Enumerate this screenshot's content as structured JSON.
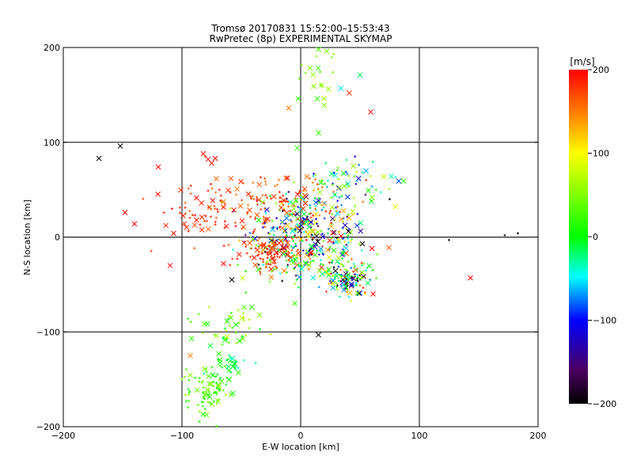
{
  "chart_data": {
    "type": "scatter",
    "title": "Tromsø 20170831 15:52:00–15:53:43",
    "subtitle": "RwPretec (8p) EXPERIMENTAL SKYMAP",
    "xlabel": "E-W location [km]",
    "ylabel": "N-S location [km]",
    "xlim": [
      -200,
      200
    ],
    "ylim": [
      -200,
      200
    ],
    "xticks": [
      "−200",
      "−100",
      "0",
      "100",
      "200"
    ],
    "yticks": [
      "−200",
      "−100",
      "0",
      "100",
      "200"
    ],
    "grid": true,
    "colorbar": {
      "label": "[m/s]",
      "min": -200,
      "max": 200,
      "ticks": [
        "200",
        "100",
        "0",
        "−100",
        "−200"
      ]
    },
    "markers": [
      "x",
      "+"
    ],
    "points": [
      {
        "x": -170,
        "y": 83,
        "v": -200,
        "m": "x"
      },
      {
        "x": -152,
        "y": 96,
        "v": -200,
        "m": "x"
      },
      {
        "x": -148,
        "y": 26,
        "v": 200,
        "m": "x"
      },
      {
        "x": -140,
        "y": 14,
        "v": 200,
        "m": "x"
      },
      {
        "x": -120,
        "y": 74,
        "v": 200,
        "m": "x"
      },
      {
        "x": -107,
        "y": 4,
        "v": 200,
        "m": "x"
      },
      {
        "x": -82,
        "y": 88,
        "v": 200,
        "m": "x"
      },
      {
        "x": -78,
        "y": 82,
        "v": 200,
        "m": "x"
      },
      {
        "x": -72,
        "y": 83,
        "v": 200,
        "m": "x"
      },
      {
        "x": -75,
        "y": 78,
        "v": 190,
        "m": "x"
      },
      {
        "x": 143,
        "y": -43,
        "v": 200,
        "m": "x"
      },
      {
        "x": 59,
        "y": 132,
        "v": 200,
        "m": "x"
      },
      {
        "x": 41,
        "y": 152,
        "v": 180,
        "m": "x"
      },
      {
        "x": 50,
        "y": 171,
        "v": -20,
        "m": "x"
      },
      {
        "x": 34,
        "y": 157,
        "v": -50,
        "m": "x"
      },
      {
        "x": 14,
        "y": 146,
        "v": 20,
        "m": "x"
      },
      {
        "x": 20,
        "y": 139,
        "v": 50,
        "m": "x"
      },
      {
        "x": -2,
        "y": 146,
        "v": 20,
        "m": "x"
      },
      {
        "x": -10,
        "y": 136,
        "v": 150,
        "m": "x"
      },
      {
        "x": 15,
        "y": 110,
        "v": 20,
        "m": "x"
      },
      {
        "x": -3,
        "y": 94,
        "v": 20,
        "m": "x"
      },
      {
        "x": 15,
        "y": 198,
        "v": 30,
        "m": "x"
      },
      {
        "x": 22,
        "y": 196,
        "v": 50,
        "m": "x"
      },
      {
        "x": 80,
        "y": 32,
        "v": 90,
        "m": "x"
      },
      {
        "x": 61,
        "y": -60,
        "v": 200,
        "m": "x"
      },
      {
        "x": 60,
        "y": -12,
        "v": 200,
        "m": "x"
      },
      {
        "x": 52,
        "y": -7,
        "v": -200,
        "m": "x"
      },
      {
        "x": 15,
        "y": -103,
        "v": -200,
        "m": "x"
      },
      {
        "x": -5,
        "y": -70,
        "v": 20,
        "m": "x"
      },
      {
        "x": -58,
        "y": -45,
        "v": -200,
        "m": "x"
      },
      {
        "x": -65,
        "y": -28,
        "v": 200,
        "m": "x"
      },
      {
        "x": -92,
        "y": -107,
        "v": 20,
        "m": "x"
      },
      {
        "x": -93,
        "y": -125,
        "v": 150,
        "m": "x"
      },
      {
        "x": -110,
        "y": -30,
        "v": 200,
        "m": "x"
      },
      {
        "x": 172,
        "y": 2,
        "v": -200,
        "m": "+"
      },
      {
        "x": 183,
        "y": 4,
        "v": -200,
        "m": "+"
      },
      {
        "x": 125,
        "y": -3,
        "v": -200,
        "m": "+"
      },
      {
        "x": 75,
        "y": 40,
        "v": -200,
        "m": "+"
      }
    ],
    "clusters": [
      {
        "cx": 5,
        "cy": 5,
        "sx": 25,
        "sy": 22,
        "n": 340,
        "vmin": -200,
        "vmax": 200
      },
      {
        "cx": -35,
        "cy": 40,
        "sx": 30,
        "sy": 15,
        "n": 120,
        "vmin": 150,
        "vmax": 200
      },
      {
        "cx": -80,
        "cy": 20,
        "sx": 22,
        "sy": 18,
        "n": 45,
        "vmin": 160,
        "vmax": 200
      },
      {
        "cx": -25,
        "cy": -18,
        "sx": 14,
        "sy": 10,
        "n": 90,
        "vmin": 160,
        "vmax": 200
      },
      {
        "cx": 40,
        "cy": -45,
        "sx": 10,
        "sy": 8,
        "n": 110,
        "vmin": -200,
        "vmax": 200
      },
      {
        "cx": 15,
        "cy": -30,
        "sx": 30,
        "sy": 12,
        "n": 80,
        "vmin": -50,
        "vmax": 80
      },
      {
        "cx": -78,
        "cy": -162,
        "sx": 9,
        "sy": 14,
        "n": 90,
        "vmin": 0,
        "vmax": 60
      },
      {
        "cx": -62,
        "cy": -130,
        "sx": 10,
        "sy": 12,
        "n": 45,
        "vmin": -40,
        "vmax": 30
      },
      {
        "cx": -55,
        "cy": -92,
        "sx": 18,
        "sy": 10,
        "n": 40,
        "vmin": -10,
        "vmax": 80
      },
      {
        "cx": 15,
        "cy": 170,
        "sx": 8,
        "sy": 18,
        "n": 18,
        "vmin": 20,
        "vmax": 80
      },
      {
        "cx": 35,
        "cy": 60,
        "sx": 18,
        "sy": 12,
        "n": 60,
        "vmin": -120,
        "vmax": 80
      }
    ]
  }
}
